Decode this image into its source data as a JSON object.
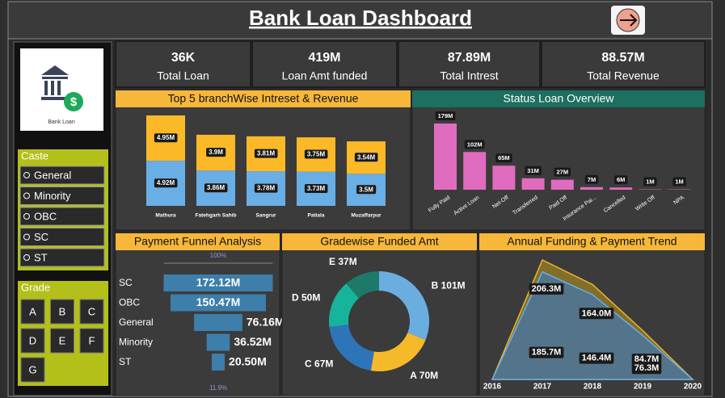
{
  "header": {
    "title": "Bank Loan Dashboard"
  },
  "logo": {
    "caption": "Bank Loan"
  },
  "kpis": [
    {
      "value": "36K",
      "label": "Total Loan"
    },
    {
      "value": "419M",
      "label": "Loan Amt funded"
    },
    {
      "value": "87.89M",
      "label": "Total Intrest"
    },
    {
      "value": "88.57M",
      "label": "Total Revenue"
    }
  ],
  "filters": {
    "caste": {
      "title": "Caste",
      "options": [
        "General",
        "Minority",
        "OBC",
        "SC",
        "ST"
      ]
    },
    "grade": {
      "title": "Grade",
      "options": [
        "A",
        "B",
        "C",
        "D",
        "E",
        "F",
        "G"
      ]
    }
  },
  "chart_data": [
    {
      "type": "stacked-bar",
      "title": "Top 5 branchWise Intreset & Revenue",
      "categories": [
        "Mathura",
        "Fatehgarh Sahib",
        "Sangrur",
        "Patiala",
        "Muzaffarpur"
      ],
      "series": [
        {
          "color": "#6aaee6",
          "values": [
            4.92,
            3.86,
            3.78,
            3.73,
            3.5
          ],
          "value_labels": [
            "4.92M",
            "3.86M",
            "3.78M",
            "3.73M",
            "3.5M"
          ]
        },
        {
          "color": "#fbb928",
          "values": [
            4.95,
            3.9,
            3.81,
            3.75,
            3.54
          ],
          "value_labels": [
            "4.95M",
            "3.9M",
            "3.81M",
            "3.75M",
            "3.54M"
          ]
        }
      ]
    },
    {
      "type": "bar",
      "title": "Status Loan Overview",
      "categories": [
        "Fully Paid",
        "Active Loan",
        "Net-Off",
        "Transferred",
        "Paid Off",
        "Insurance Pai...",
        "Cancelled",
        "Write Off",
        "NPA"
      ],
      "values": [
        179,
        102,
        65,
        31,
        27,
        7,
        6,
        1,
        1
      ],
      "value_labels": [
        "179M",
        "102M",
        "65M",
        "31M",
        "27M",
        "7M",
        "6M",
        "1M",
        "1M"
      ],
      "color": "#e06cbf"
    },
    {
      "type": "funnel",
      "title": "Payment Funnel Analysis",
      "categories": [
        "SC",
        "OBC",
        "General",
        "Minority",
        "ST"
      ],
      "values": [
        172.12,
        150.47,
        76.16,
        36.52,
        20.5
      ],
      "value_labels": [
        "172.12M",
        "150.47M",
        "76.16M",
        "36.52M",
        "20.50M"
      ],
      "color": "#3d7eaa",
      "annotations": [
        "100%",
        "11.9%"
      ]
    },
    {
      "type": "donut",
      "title": "Gradewise Funded Amt",
      "categories": [
        "B",
        "A",
        "C",
        "D",
        "E"
      ],
      "values": [
        101,
        70,
        67,
        50,
        37
      ],
      "value_labels": [
        "101M",
        "70M",
        "67M",
        "50M",
        "37M"
      ],
      "colors": [
        "#6aaee0",
        "#f5b92a",
        "#2e74b8",
        "#17b39a",
        "#1d7a68"
      ]
    },
    {
      "type": "area",
      "title": "Annual Funding & Payment Trend",
      "x": [
        2016,
        2017,
        2018,
        2019,
        2020
      ],
      "series": [
        {
          "color": "#f0b429",
          "values": [
            0,
            206.3,
            164.0,
            84.7,
            0
          ],
          "value_labels": [
            null,
            "206.3M",
            "164.0M",
            "84.7M",
            null
          ]
        },
        {
          "color": "#6aaee6",
          "values": [
            0,
            185.7,
            146.4,
            76.3,
            0
          ],
          "value_labels": [
            null,
            "185.7M",
            "146.4M",
            "76.3M",
            null
          ]
        }
      ]
    }
  ]
}
